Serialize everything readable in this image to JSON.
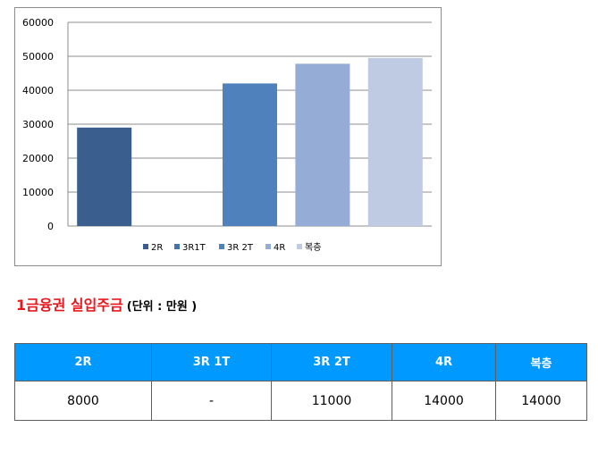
{
  "chart_data": {
    "type": "bar",
    "categories": [
      "2R",
      "3R1T",
      "3R 2T",
      "4R",
      "복층"
    ],
    "values": [
      29000,
      null,
      42000,
      47800,
      49500
    ],
    "colors": [
      "#3a5f8f",
      "#4573ae",
      "#4f81bd",
      "#95acd6",
      "#bfcbe3"
    ],
    "yticks": [
      "0",
      "10000",
      "20000",
      "30000",
      "40000",
      "50000",
      "60000"
    ],
    "ylim": [
      0,
      60000
    ],
    "grid": true,
    "legend_position": "bottom"
  },
  "heading": {
    "title": "1금융권 실입주금",
    "unit": "(단위 : 만원 )"
  },
  "table": {
    "headers": [
      "2R",
      "3R 1T",
      "3R 2T",
      "4R",
      "복층"
    ],
    "row": [
      "8000",
      "-",
      "11000",
      "14000",
      "14000"
    ],
    "header_color": "#0099ff"
  }
}
